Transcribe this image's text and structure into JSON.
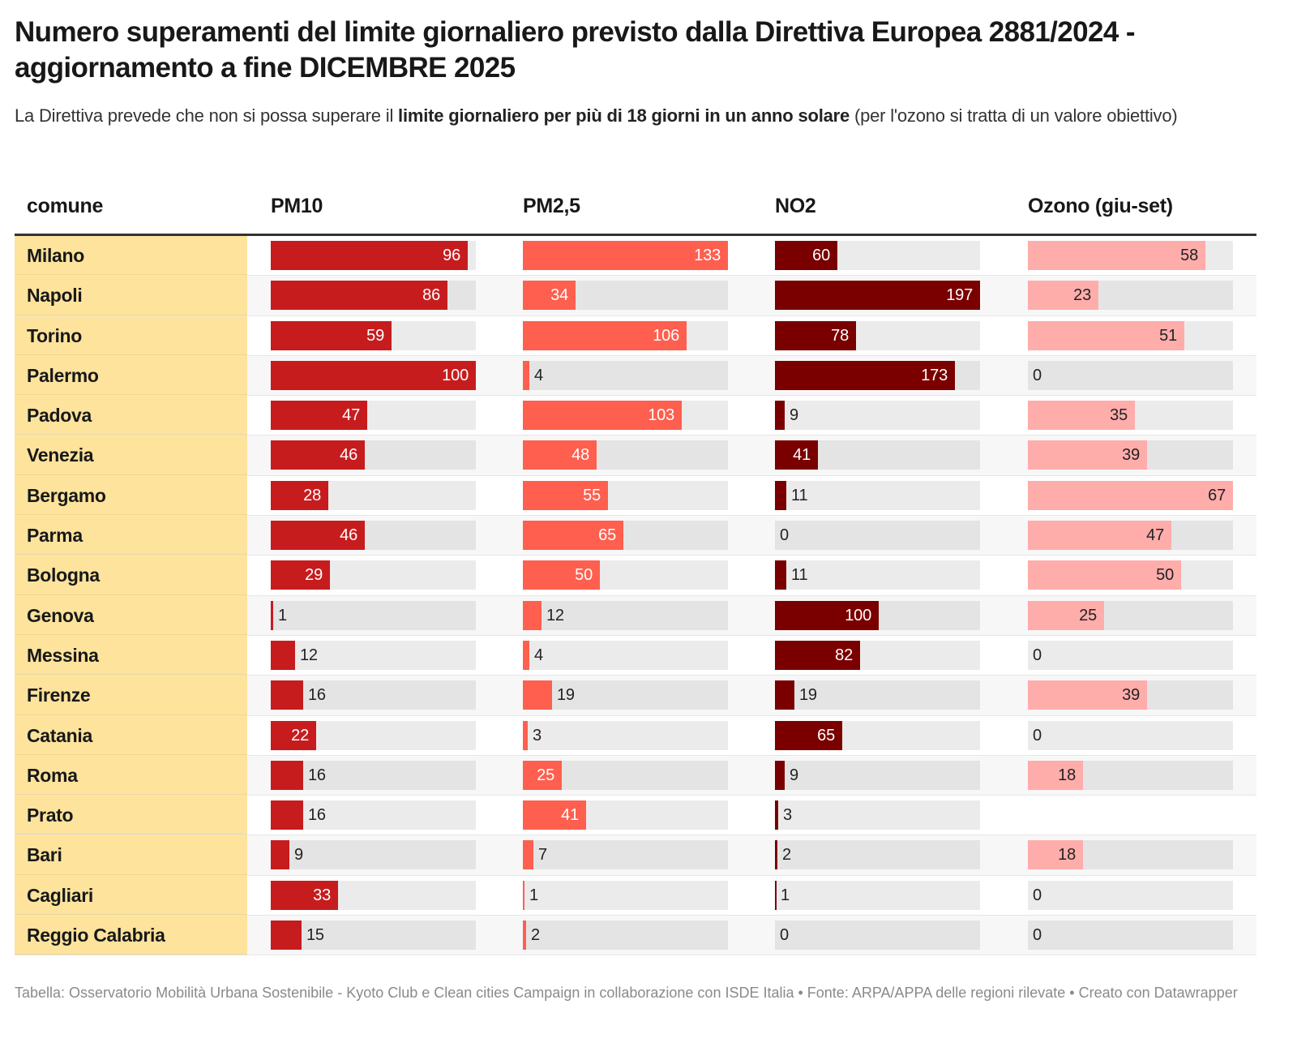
{
  "header": {
    "title": "Numero superamenti del limite giornaliero previsto dalla Direttiva Europea 2881/2024 - aggiornamento a fine DICEMBRE 2025",
    "subtitle_pre": "La Direttiva prevede che non si possa superare il ",
    "subtitle_bold": "limite giornaliero per più di 18 giorni in un anno solare",
    "subtitle_post": " (per l'ozono si tratta di un valore obiettivo)"
  },
  "footer": {
    "text": "Tabella: Osservatorio Mobilità Urbana Sostenibile - Kyoto Club e Clean cities Campaign in collaborazione con ISDE Italia • Fonte: ARPA/APPA delle regioni rilevate • Creato con Datawrapper"
  },
  "colors": {
    "name_column": "#fde39c",
    "PM10": "#c71c1e",
    "PM2_5": "#fe5f4e",
    "NO2": "#7a0000",
    "Ozono": "#ffadab",
    "track": "#ebebeb"
  },
  "chart_data": {
    "type": "table",
    "title": "Numero superamenti del limite giornaliero previsto dalla Direttiva Europea 2881/2024 - aggiornamento a fine DICEMBRE 2025",
    "columns": [
      "comune",
      "PM10",
      "PM2,5",
      "NO2",
      "Ozono (giu-set)"
    ],
    "series_keys": [
      "PM10",
      "PM2_5",
      "NO2",
      "Ozono"
    ],
    "scale_max": {
      "PM10": 100,
      "PM2_5": 133,
      "NO2": 197,
      "Ozono": 67
    },
    "rows": [
      {
        "comune": "Milano",
        "PM10": 96,
        "PM2_5": 133,
        "NO2": 60,
        "Ozono": 58
      },
      {
        "comune": "Napoli",
        "PM10": 86,
        "PM2_5": 34,
        "NO2": 197,
        "Ozono": 23
      },
      {
        "comune": "Torino",
        "PM10": 59,
        "PM2_5": 106,
        "NO2": 78,
        "Ozono": 51
      },
      {
        "comune": "Palermo",
        "PM10": 100,
        "PM2_5": 4,
        "NO2": 173,
        "Ozono": 0
      },
      {
        "comune": "Padova",
        "PM10": 47,
        "PM2_5": 103,
        "NO2": 9,
        "Ozono": 35
      },
      {
        "comune": "Venezia",
        "PM10": 46,
        "PM2_5": 48,
        "NO2": 41,
        "Ozono": 39
      },
      {
        "comune": "Bergamo",
        "PM10": 28,
        "PM2_5": 55,
        "NO2": 11,
        "Ozono": 67
      },
      {
        "comune": "Parma",
        "PM10": 46,
        "PM2_5": 65,
        "NO2": 0,
        "Ozono": 47
      },
      {
        "comune": "Bologna",
        "PM10": 29,
        "PM2_5": 50,
        "NO2": 11,
        "Ozono": 50
      },
      {
        "comune": "Genova",
        "PM10": 1,
        "PM2_5": 12,
        "NO2": 100,
        "Ozono": 25
      },
      {
        "comune": "Messina",
        "PM10": 12,
        "PM2_5": 4,
        "NO2": 82,
        "Ozono": 0
      },
      {
        "comune": "Firenze",
        "PM10": 16,
        "PM2_5": 19,
        "NO2": 19,
        "Ozono": 39
      },
      {
        "comune": "Catania",
        "PM10": 22,
        "PM2_5": 3,
        "NO2": 65,
        "Ozono": 0
      },
      {
        "comune": "Roma",
        "PM10": 16,
        "PM2_5": 25,
        "NO2": 9,
        "Ozono": 18
      },
      {
        "comune": "Prato",
        "PM10": 16,
        "PM2_5": 41,
        "NO2": 3,
        "Ozono": null
      },
      {
        "comune": "Bari",
        "PM10": 9,
        "PM2_5": 7,
        "NO2": 2,
        "Ozono": 18
      },
      {
        "comune": "Cagliari",
        "PM10": 33,
        "PM2_5": 1,
        "NO2": 1,
        "Ozono": 0
      },
      {
        "comune": "Reggio Calabria",
        "PM10": 15,
        "PM2_5": 2,
        "NO2": 0,
        "Ozono": 0
      }
    ]
  }
}
